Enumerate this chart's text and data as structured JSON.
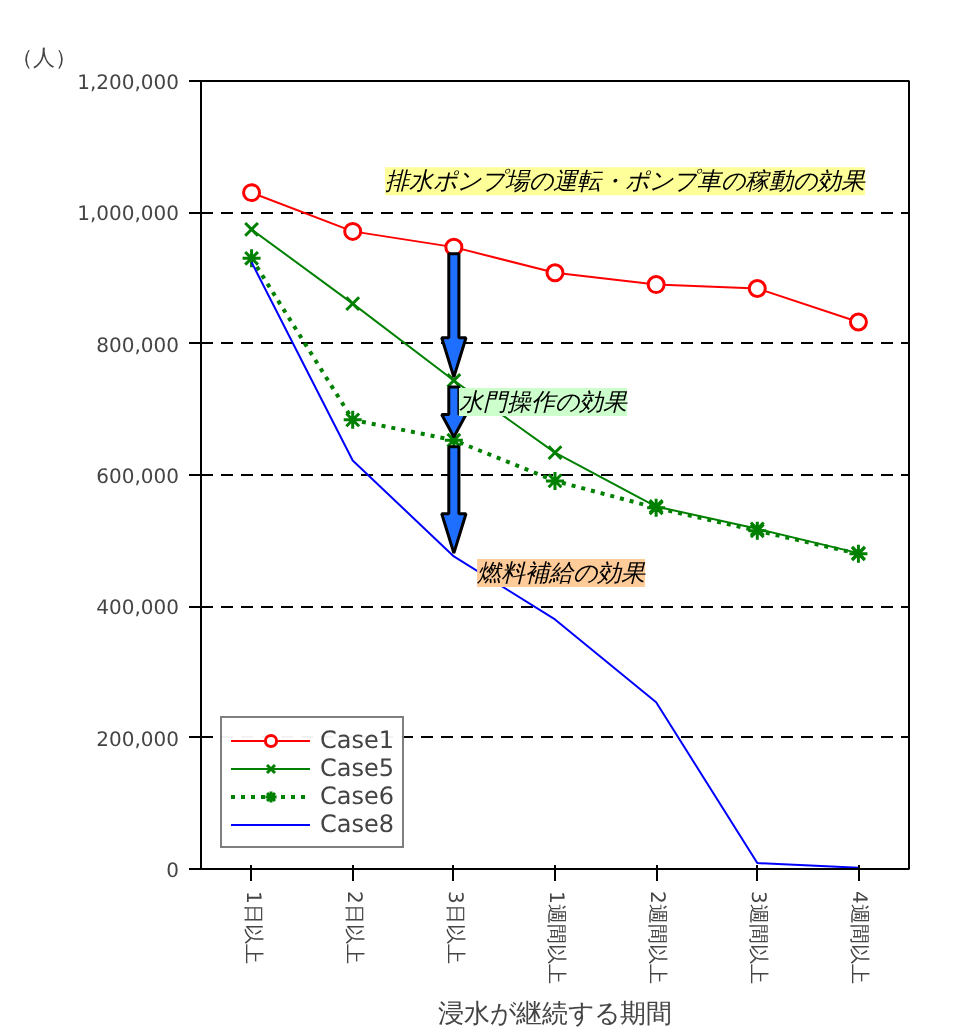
{
  "chart_data": {
    "type": "line",
    "ylabel": "（人）",
    "xlabel": "浸水が継続する期間",
    "categories": [
      "1日以上",
      "2日以上",
      "3日以上",
      "1週間以上",
      "2週間以上",
      "3週間以上",
      "4週間以上"
    ],
    "series": [
      {
        "name": "Case1",
        "color": "#ff0000",
        "marker": "circle",
        "line_style": "solid",
        "values": [
          1030000,
          971000,
          947000,
          908000,
          890000,
          884000,
          833000
        ]
      },
      {
        "name": "Case5",
        "color": "#008000",
        "marker": "cross",
        "line_style": "solid",
        "values": [
          974000,
          861000,
          744000,
          634000,
          552000,
          518000,
          481000
        ]
      },
      {
        "name": "Case6",
        "color": "#008000",
        "marker": "cross",
        "line_style": "dotted",
        "values": [
          930000,
          684000,
          653000,
          591000,
          550000,
          515000,
          480000
        ]
      },
      {
        "name": "Case8",
        "color": "#0000ff",
        "marker": "none",
        "line_style": "solid",
        "values": [
          924000,
          622000,
          476000,
          380000,
          254000,
          9000,
          2000
        ]
      }
    ],
    "ylim": [
      0,
      1200000
    ],
    "yticks": [
      {
        "value": 0,
        "label": "0"
      },
      {
        "value": 200000,
        "label": "200,000"
      },
      {
        "value": 400000,
        "label": "400,000"
      },
      {
        "value": 600000,
        "label": "600,000"
      },
      {
        "value": 800000,
        "label": "800,000"
      },
      {
        "value": 1000000,
        "label": "1,000,000"
      },
      {
        "value": 1200000,
        "label": "1,200,000"
      }
    ],
    "grid": "y",
    "legend": "bottom left",
    "annotations": [
      "排水ポンプ場の運転・ポンプ車の稼動の効果",
      {
        "text": "水門操作の効果",
        "x": "3日以上",
        "y": 700000
      },
      "燃料補給の効果"
    ]
  }
}
